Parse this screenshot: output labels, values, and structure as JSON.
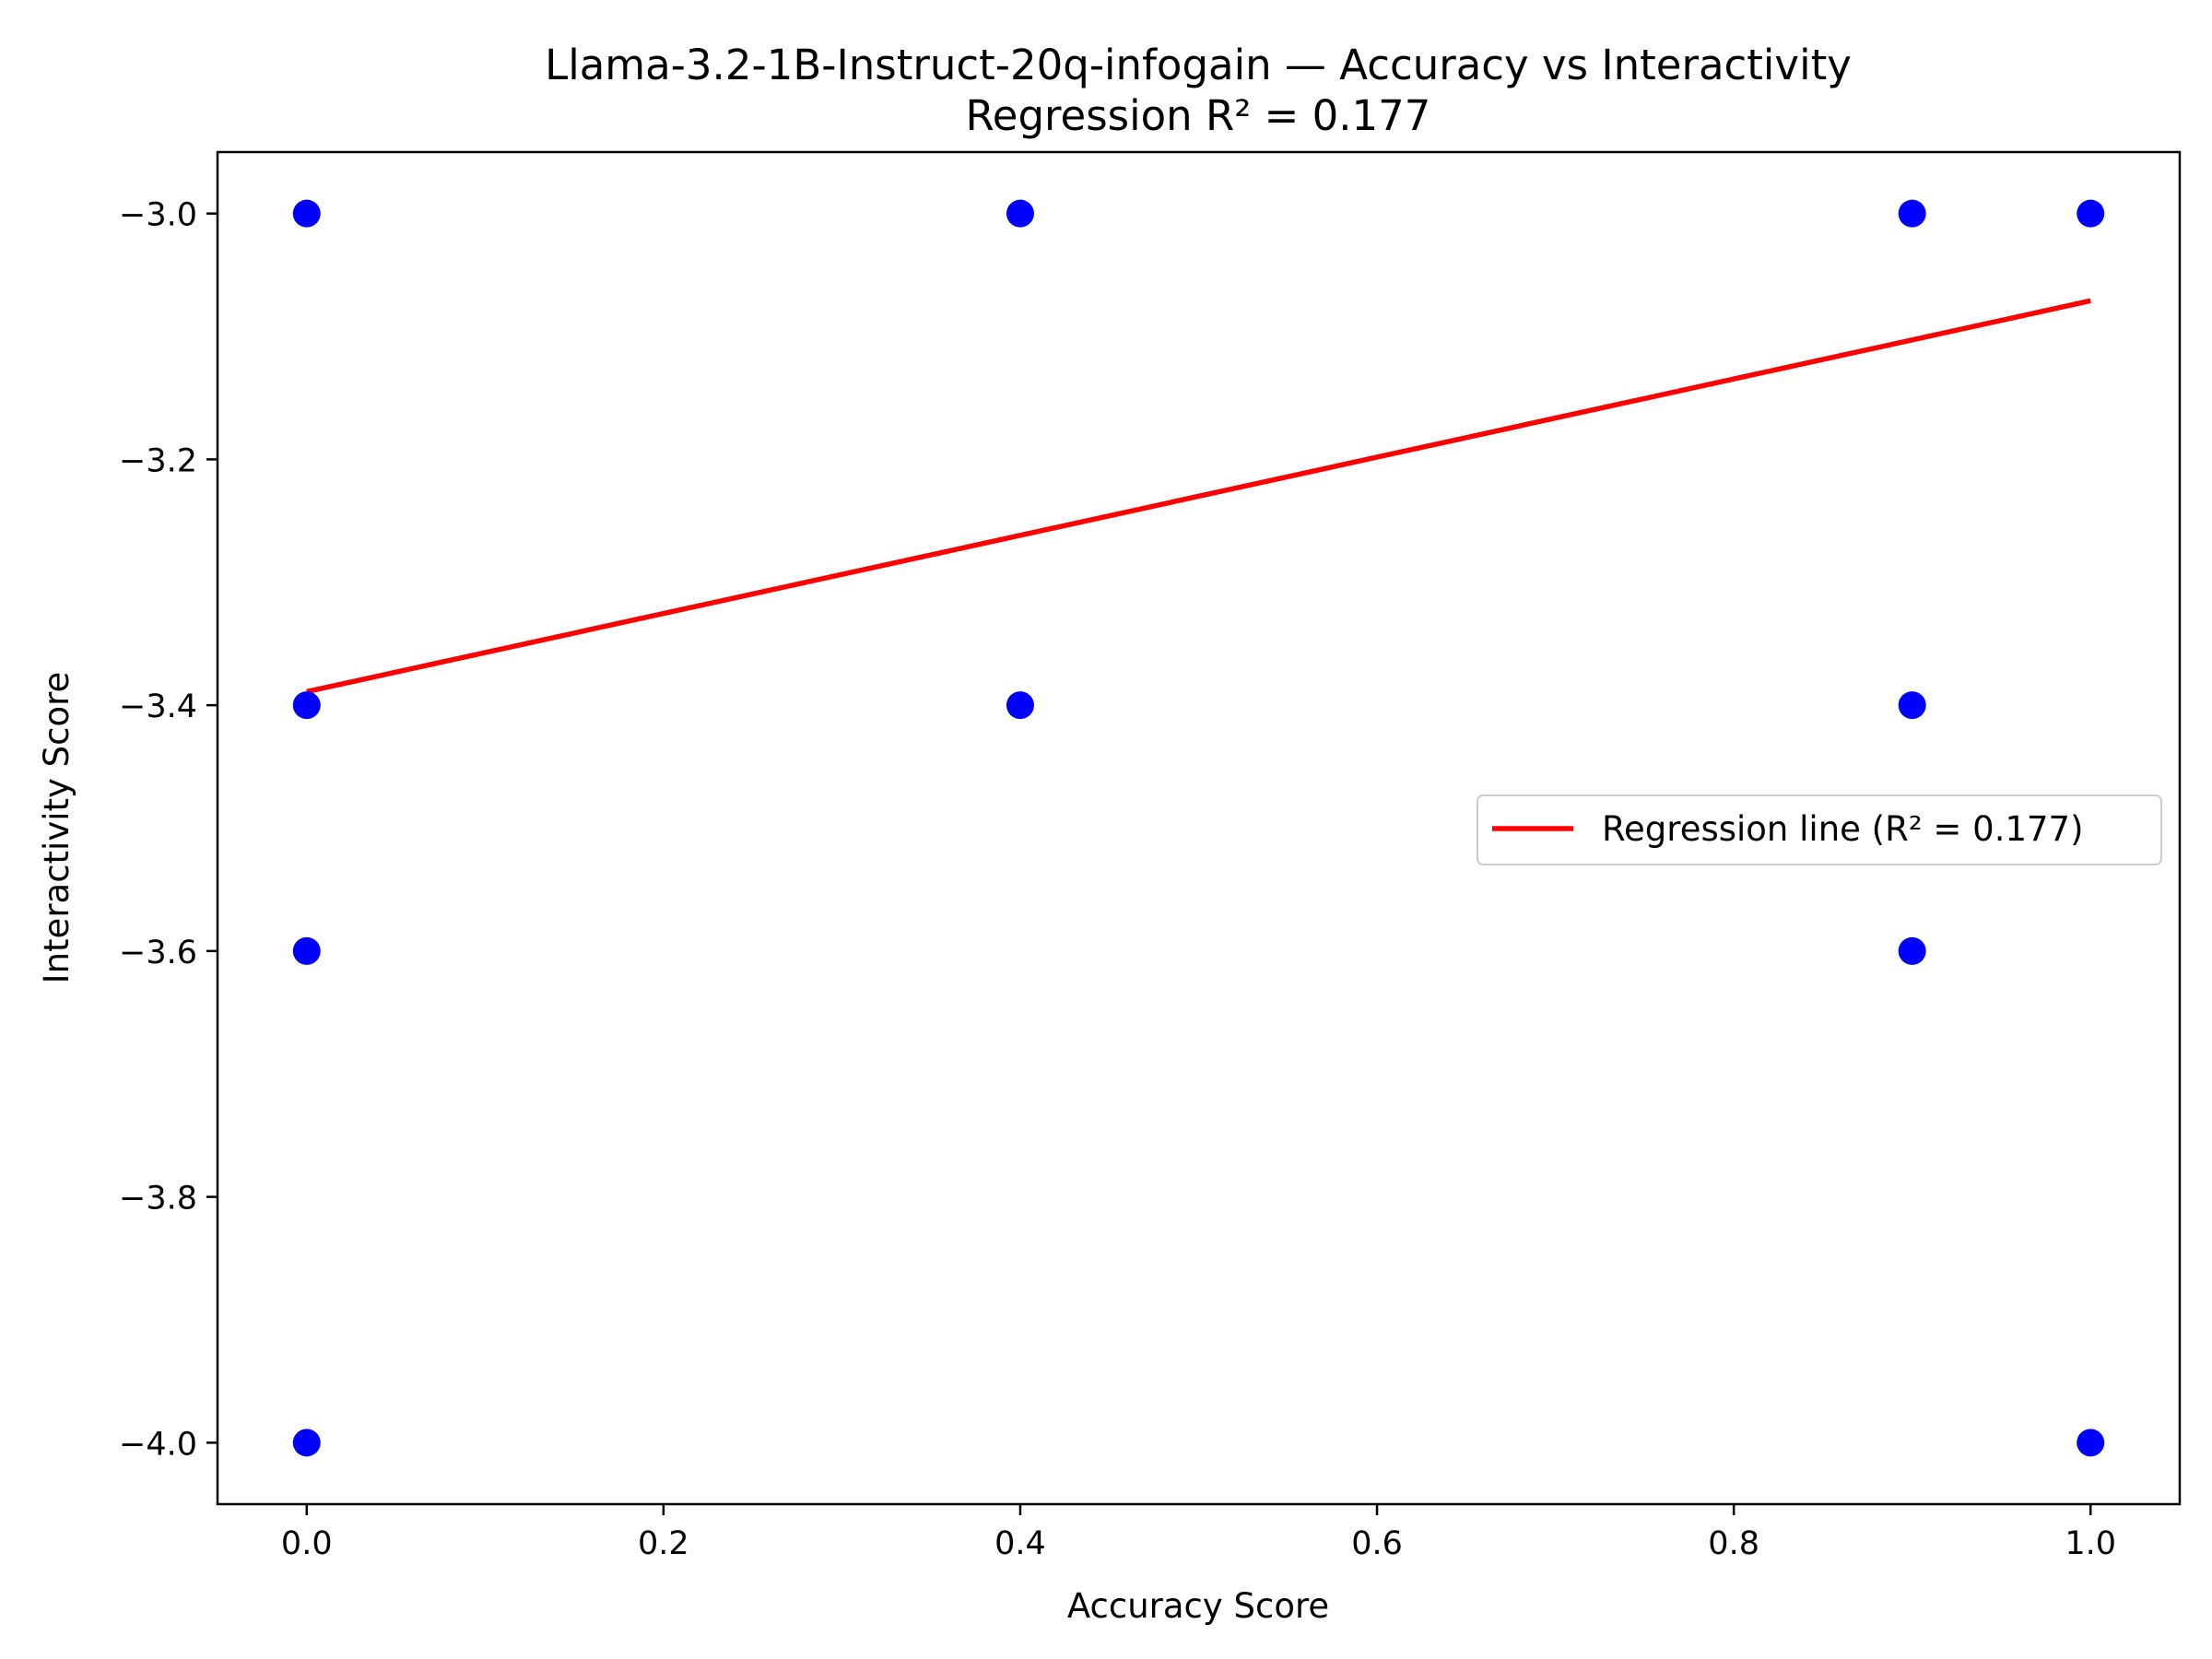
{
  "chart_data": {
    "type": "scatter",
    "title": "Llama-3.2-1B-Instruct-20q-infogain — Accuracy vs Interactivity",
    "subtitle": "Regression R² = 0.177",
    "xlabel": "Accuracy Score",
    "ylabel": "Interactivity Score",
    "xlim": [
      -0.05,
      1.05
    ],
    "ylim": [
      -4.05,
      -2.95
    ],
    "xticks": [
      "0.0",
      "0.2",
      "0.4",
      "0.6",
      "0.8",
      "1.0"
    ],
    "xtick_values": [
      0.0,
      0.2,
      0.4,
      0.6,
      0.8,
      1.0
    ],
    "yticks": [
      "−3.0",
      "−3.2",
      "−3.4",
      "−3.6",
      "−3.8",
      "−4.0"
    ],
    "ytick_values": [
      -3.0,
      -3.2,
      -3.4,
      -3.6,
      -3.8,
      -4.0
    ],
    "grid": false,
    "legend_position": "center-right",
    "points": [
      {
        "x": 0.0,
        "y": -3.0
      },
      {
        "x": 0.0,
        "y": -3.4
      },
      {
        "x": 0.0,
        "y": -3.6
      },
      {
        "x": 0.0,
        "y": -4.0
      },
      {
        "x": 0.4,
        "y": -3.0
      },
      {
        "x": 0.4,
        "y": -3.4
      },
      {
        "x": 0.9,
        "y": -3.0
      },
      {
        "x": 0.9,
        "y": -3.4
      },
      {
        "x": 0.9,
        "y": -3.6
      },
      {
        "x": 1.0,
        "y": -3.0
      },
      {
        "x": 1.0,
        "y": -4.0
      }
    ],
    "point_color": "#0000ff",
    "regression": {
      "label": "Regression line (R² = 0.177)",
      "color": "#ff0000",
      "x": [
        0.0,
        1.0
      ],
      "y": [
        -3.389,
        -3.071
      ]
    }
  }
}
